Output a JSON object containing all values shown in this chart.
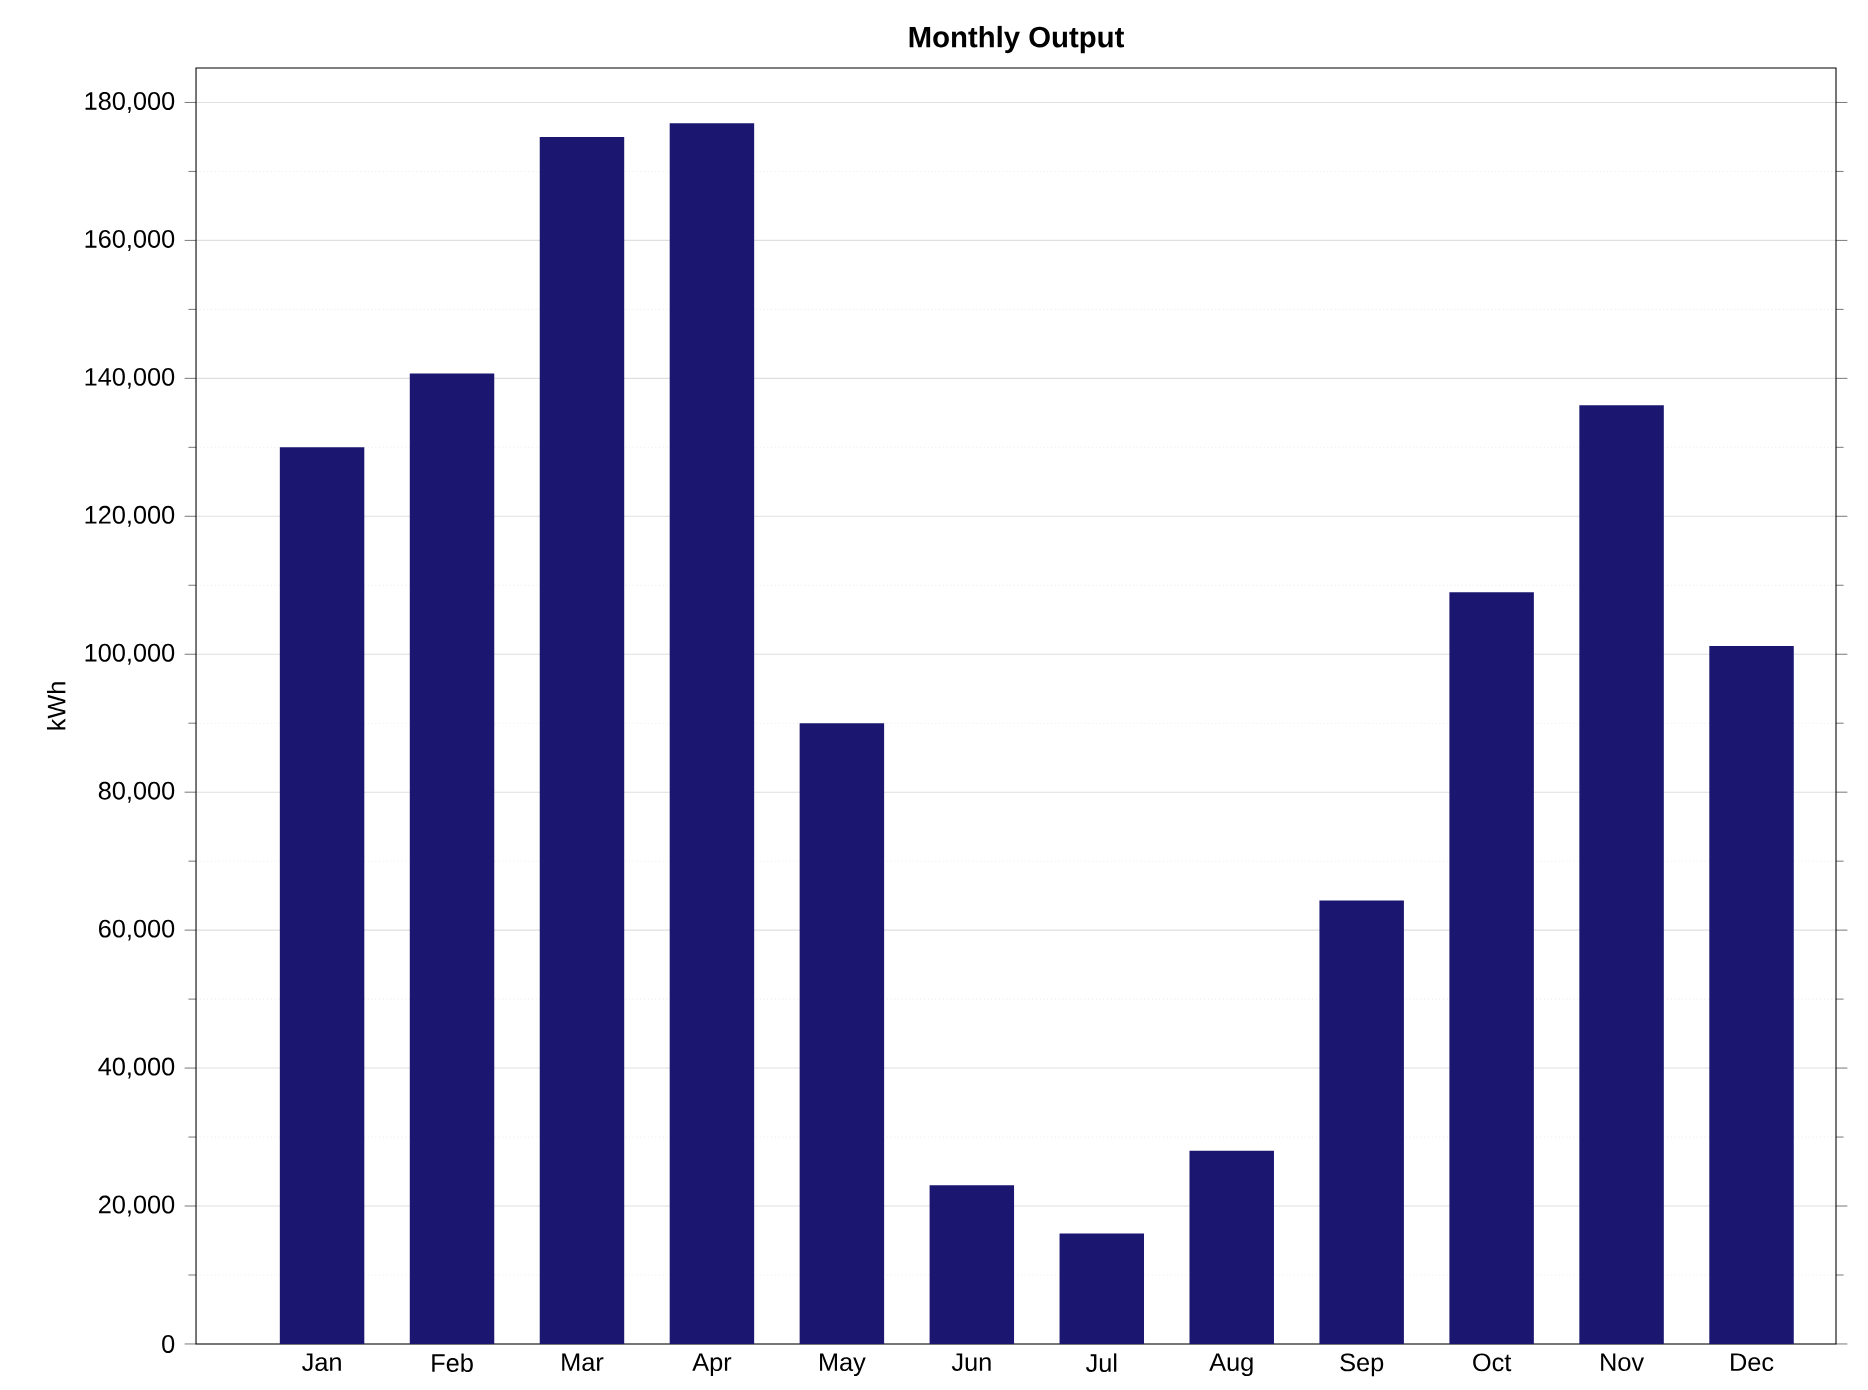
{
  "chart_data": {
    "type": "bar",
    "title": "Monthly Output",
    "ylabel": "kWh",
    "categories": [
      "Jan",
      "Feb",
      "Mar",
      "Apr",
      "May",
      "Jun",
      "Jul",
      "Aug",
      "Sep",
      "Oct",
      "Nov",
      "Dec"
    ],
    "values": [
      130000,
      140700,
      175000,
      177000,
      90000,
      23000,
      16000,
      28000,
      64300,
      109000,
      136100,
      101200
    ],
    "color": "#1b1670",
    "ylim": [
      0,
      185000
    ],
    "yticks": [
      {
        "value": 0,
        "label": "0"
      },
      {
        "value": 20000,
        "label": "20,000"
      },
      {
        "value": 40000,
        "label": "40,000"
      },
      {
        "value": 60000,
        "label": "60,000"
      },
      {
        "value": 80000,
        "label": "80,000"
      },
      {
        "value": 100000,
        "label": "100,000"
      },
      {
        "value": 120000,
        "label": "120,000"
      },
      {
        "value": 140000,
        "label": "140,000"
      },
      {
        "value": 160000,
        "label": "160,000"
      },
      {
        "value": 180000,
        "label": "180,000"
      }
    ],
    "grid": "y"
  }
}
